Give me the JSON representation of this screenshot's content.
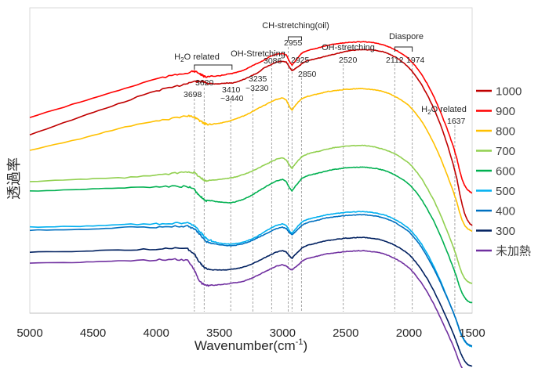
{
  "chart_data": {
    "type": "line",
    "title": "",
    "xlabel": "Wavenumber(cm",
    "xlabel_sup": "-1",
    "xlabel_close": ")",
    "ylabel": "透過率",
    "xlim": [
      5000,
      1500
    ],
    "x_reversed": true,
    "xticks": [
      5000,
      4500,
      4000,
      3500,
      3000,
      2500,
      2000,
      1500
    ],
    "yticks_shown": false,
    "grid": false,
    "legend_position": "right",
    "x": [
      5000,
      4600,
      4300,
      4000,
      3850,
      3750,
      3700,
      3670,
      3640,
      3620,
      3600,
      3560,
      3500,
      3440,
      3400,
      3350,
      3300,
      3250,
      3200,
      3150,
      3100,
      3050,
      3000,
      2970,
      2955,
      2940,
      2925,
      2905,
      2880,
      2860,
      2850,
      2830,
      2800,
      2750,
      2700,
      2650,
      2600,
      2550,
      2500,
      2450,
      2400,
      2350,
      2300,
      2250,
      2200,
      2150,
      2100,
      2050,
      2000,
      1950,
      1900,
      1850,
      1800,
      1750,
      1700,
      1650,
      1620,
      1600,
      1580,
      1560,
      1540,
      1520,
      1500
    ],
    "series": [
      {
        "name": "1000",
        "color": "#c00000",
        "values": [
          100,
          77,
          60,
          43,
          38,
          33,
          31,
          31,
          31,
          32,
          33,
          34,
          34,
          33,
          33,
          31,
          28,
          24,
          20,
          14,
          10,
          6,
          5,
          6,
          10,
          14,
          17,
          15,
          12,
          10,
          8,
          6,
          4,
          2,
          0,
          -2,
          -4,
          -6,
          -8,
          -9.5,
          -10,
          -10,
          -10,
          -9,
          -7.5,
          -4,
          0,
          6,
          13,
          23,
          35,
          50,
          67,
          87,
          111,
          138,
          158,
          175,
          190,
          202,
          210,
          215,
          218
        ]
      },
      {
        "name": "900",
        "color": "#ff0000",
        "values": [
          100,
          80,
          65,
          50,
          45,
          42,
          40,
          42,
          45,
          47,
          47,
          47,
          46,
          44,
          43,
          41,
          38,
          34,
          30,
          26,
          21,
          18,
          17,
          19,
          24,
          29,
          32,
          28,
          23,
          19,
          17,
          15,
          13,
          11,
          9,
          7,
          5,
          4,
          3,
          2.5,
          2,
          2,
          2.5,
          4,
          6,
          9,
          13,
          18,
          24,
          33,
          44,
          58,
          74,
          93,
          114,
          137,
          154,
          168,
          180,
          188,
          193,
          196,
          198
        ]
      },
      {
        "name": "800",
        "color": "#ffc000",
        "values": [
          100,
          85,
          72,
          62,
          58,
          55,
          57,
          60,
          63,
          65,
          66,
          66,
          65,
          63,
          61,
          58,
          55,
          51,
          46,
          42,
          38,
          34,
          32,
          35,
          40,
          45,
          48,
          43,
          38,
          35,
          33,
          32,
          30,
          28,
          26,
          24,
          23,
          22,
          21,
          20.5,
          20,
          20,
          21,
          22,
          24,
          27,
          31,
          36,
          42,
          51,
          62,
          76,
          92,
          110,
          131,
          153,
          168,
          180,
          190,
          197,
          201,
          203,
          205
        ]
      },
      {
        "name": "700",
        "color": "#92d050",
        "values": [
          100,
          97,
          95,
          92,
          89,
          87,
          88,
          92,
          96,
          98,
          99,
          98,
          97,
          96,
          95,
          93,
          90,
          87,
          83,
          79,
          75,
          71,
          69,
          72,
          76,
          80,
          83,
          78,
          73,
          70,
          68,
          66,
          64,
          62,
          60,
          58,
          56,
          55,
          54,
          53.5,
          53,
          53,
          54,
          56,
          58,
          61,
          65,
          70,
          76,
          85,
          96,
          110,
          125,
          143,
          163,
          184,
          199,
          210,
          219,
          225,
          229,
          231,
          232
        ]
      },
      {
        "name": "600",
        "color": "#00b050",
        "values": [
          100,
          98,
          96,
          95,
          94,
          94,
          98,
          104,
          108,
          111,
          113,
          113,
          114,
          115,
          115,
          113,
          110,
          106,
          101,
          96,
          91,
          87,
          85,
          88,
          93,
          97,
          100,
          95,
          90,
          86,
          84,
          82,
          80,
          78,
          76,
          74,
          72,
          71,
          70,
          69.5,
          69,
          69,
          70,
          71,
          73,
          76,
          80,
          85,
          91,
          100,
          111,
          125,
          140,
          158,
          178,
          199,
          213,
          224,
          232,
          238,
          242,
          244,
          245
        ]
      },
      {
        "name": "500",
        "color": "#00b0f0",
        "values": [
          100,
          99,
          97,
          96,
          95,
          95,
          98,
          103,
          108,
          112,
          115,
          118,
          121,
          122,
          122,
          121,
          119,
          116,
          112,
          107,
          102,
          98,
          96,
          98,
          102,
          106,
          108,
          104,
          99,
          96,
          94,
          92,
          90,
          88,
          86,
          84,
          83,
          82,
          81,
          80.5,
          80,
          80,
          81,
          82,
          84,
          87,
          91,
          96,
          102,
          111,
          122,
          136,
          152,
          170,
          190,
          210,
          224,
          234,
          242,
          248,
          252,
          254,
          255
        ]
      },
      {
        "name": "400",
        "color": "#0070c0",
        "values": [
          100,
          99,
          97,
          96,
          95,
          95,
          98,
          103,
          108,
          112,
          115,
          117,
          119,
          120,
          120,
          119,
          117,
          114,
          110,
          106,
          102,
          98,
          96,
          98,
          101,
          104,
          106,
          103,
          99,
          96,
          94,
          92,
          90,
          88,
          86,
          84,
          83,
          82,
          81,
          80.5,
          80,
          80,
          81,
          82,
          84,
          87,
          91,
          96,
          102,
          111,
          122,
          136,
          151,
          168,
          187,
          206,
          219,
          229,
          237,
          243,
          247,
          249,
          250
        ]
      },
      {
        "name": "300",
        "color": "#002060",
        "values": [
          100,
          99,
          97,
          96,
          95,
          96,
          102,
          110,
          116,
          120,
          122,
          123,
          123,
          123,
          122,
          121,
          119,
          116,
          112,
          108,
          104,
          100,
          98,
          100,
          103,
          106,
          108,
          104,
          100,
          97,
          95,
          93,
          91,
          89,
          87,
          85,
          84,
          83,
          82,
          81.5,
          81,
          81,
          82,
          83,
          85,
          88,
          92,
          97,
          103,
          112,
          123,
          136,
          151,
          168,
          186,
          205,
          218,
          227,
          235,
          241,
          245,
          247,
          248
        ]
      },
      {
        "name": "未加熱",
        "color": "#7030a0",
        "values": [
          100,
          99,
          97,
          96,
          95,
          97,
          108,
          120,
          126,
          128,
          129,
          129,
          128,
          127,
          126,
          125,
          123,
          120,
          116,
          112,
          108,
          104,
          102,
          104,
          106,
          108,
          109,
          106,
          103,
          100,
          98,
          96,
          94,
          92,
          90,
          88,
          87,
          86,
          85,
          84.5,
          84,
          84,
          85,
          86,
          88,
          91,
          95,
          100,
          106,
          115,
          126,
          139,
          154,
          171,
          189,
          207,
          220,
          229,
          236,
          242,
          246,
          248,
          249
        ]
      }
    ],
    "marker_lines": [
      3698,
      3620,
      3410,
      3235,
      3086,
      2955,
      2925,
      2850,
      2520,
      2112,
      1974,
      1637
    ],
    "annotations": [
      {
        "id": "h2o-related",
        "text": "H₂O related",
        "range": [
          3698,
          3400
        ]
      },
      {
        "id": "oh-stretching-1",
        "text": "OH-Stretching",
        "range": [
          3235,
          3086
        ]
      },
      {
        "id": "ch-stretching",
        "text": "CH-stretching(oil)",
        "range": [
          2955,
          2850
        ]
      },
      {
        "id": "oh-stretching-2",
        "text": "OH-stretching",
        "at": 2520
      },
      {
        "id": "diaspore",
        "text": "Diaspore",
        "range": [
          2112,
          1974
        ]
      },
      {
        "id": "h2o-related-2",
        "text": "H₂O related",
        "at": 1637
      }
    ],
    "peak_labels": [
      {
        "text": "3698",
        "at": 3698
      },
      {
        "text": "3620",
        "at": 3620
      },
      {
        "text": "3410",
        "at": 3410
      },
      {
        "text": "~3440",
        "at": 3410
      },
      {
        "text": "3235",
        "at": 3235
      },
      {
        "text": "~3230",
        "at": 3235
      },
      {
        "text": "3086",
        "at": 3086
      },
      {
        "text": "2955",
        "at": 2955
      },
      {
        "text": "2925",
        "at": 2925
      },
      {
        "text": "2850",
        "at": 2850
      },
      {
        "text": "2520",
        "at": 2520
      },
      {
        "text": "2112",
        "at": 2112
      },
      {
        "text": "1974",
        "at": 1974
      },
      {
        "text": "1637",
        "at": 1637
      }
    ]
  }
}
